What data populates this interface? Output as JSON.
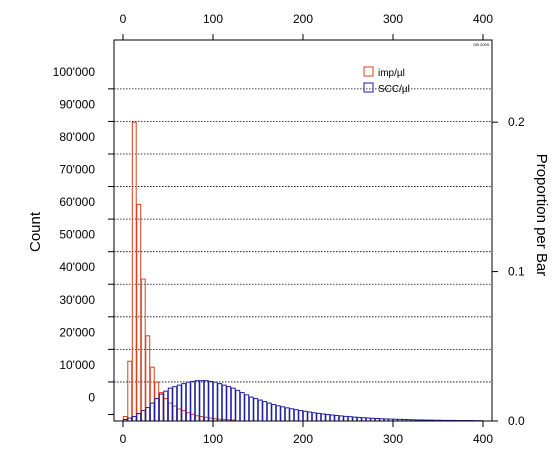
{
  "chart_data": {
    "type": "bar",
    "title": "",
    "xlabel": "",
    "ylabel_left": "Count",
    "ylabel_right": "Proportion per Bar",
    "xlim": [
      -10,
      410
    ],
    "ylim_left": [
      -2000,
      115000
    ],
    "ylim_right": [
      0,
      0.255
    ],
    "xticks": [
      0,
      100,
      200,
      300,
      400
    ],
    "xtick_labels": [
      "0",
      "100",
      "200",
      "300",
      "400"
    ],
    "yticks_left": [
      0,
      10000,
      20000,
      30000,
      40000,
      50000,
      60000,
      70000,
      80000,
      90000,
      100000
    ],
    "ytick_labels_left": [
      "0",
      "10'000",
      "20'000",
      "30'000",
      "40'000",
      "50'000",
      "60'000",
      "70'000",
      "80'000",
      "90'000",
      "100'000"
    ],
    "yticks_right": [
      0,
      0.1,
      0.2
    ],
    "ytick_labels_right": [
      "0.0",
      "0.1",
      "0.2"
    ],
    "grid_y": true,
    "legend_position": "top-right",
    "watermark": "GB 2009",
    "bin_width": 5,
    "series": [
      {
        "name": "imp/µl",
        "color": "#d9401e",
        "x": [
          0,
          5,
          10,
          15,
          20,
          25,
          30,
          35,
          40,
          45,
          50,
          55,
          60,
          65,
          70,
          75,
          80,
          85,
          90,
          95,
          100,
          105,
          110,
          115,
          120
        ],
        "values": [
          0.003,
          0.04,
          0.2,
          0.145,
          0.095,
          0.057,
          0.036,
          0.026,
          0.019,
          0.015,
          0.012,
          0.01,
          0.008,
          0.007,
          0.0055,
          0.0045,
          0.0035,
          0.003,
          0.0025,
          0.002,
          0.0015,
          0.0012,
          0.001,
          0.0008,
          0.0006
        ]
      },
      {
        "name": "SCC/µl",
        "color": "#1e1ea0",
        "x": [
          0,
          5,
          10,
          15,
          20,
          25,
          30,
          35,
          40,
          45,
          50,
          55,
          60,
          65,
          70,
          75,
          80,
          85,
          90,
          95,
          100,
          105,
          110,
          115,
          120,
          125,
          130,
          135,
          140,
          145,
          150,
          155,
          160,
          165,
          170,
          175,
          180,
          185,
          190,
          195,
          200,
          205,
          210,
          215,
          220,
          225,
          230,
          235,
          240,
          245,
          250,
          255,
          260,
          265,
          270,
          275,
          280,
          285,
          290,
          295,
          300,
          305,
          310,
          315,
          320,
          325,
          330,
          335,
          340,
          345,
          350,
          355,
          360,
          365,
          370,
          375,
          380,
          385,
          390,
          395
        ],
        "values": [
          0.001,
          0.002,
          0.003,
          0.005,
          0.007,
          0.009,
          0.012,
          0.015,
          0.018,
          0.02,
          0.022,
          0.023,
          0.024,
          0.025,
          0.026,
          0.0265,
          0.027,
          0.027,
          0.027,
          0.0265,
          0.026,
          0.025,
          0.024,
          0.023,
          0.022,
          0.0205,
          0.019,
          0.0175,
          0.016,
          0.015,
          0.014,
          0.013,
          0.012,
          0.011,
          0.0102,
          0.0095,
          0.0088,
          0.0082,
          0.0076,
          0.007,
          0.0065,
          0.006,
          0.0055,
          0.0051,
          0.0047,
          0.0043,
          0.004,
          0.0037,
          0.0034,
          0.0031,
          0.0029,
          0.0026,
          0.0024,
          0.0022,
          0.002,
          0.0018,
          0.0017,
          0.0015,
          0.0014,
          0.0013,
          0.0012,
          0.0011,
          0.001,
          0.0009,
          0.0008,
          0.0007,
          0.0007,
          0.0006,
          0.0006,
          0.0005,
          0.0005,
          0.0004,
          0.0004,
          0.0004,
          0.0003,
          0.0003,
          0.0003,
          0.0003,
          0.0002,
          0.0002
        ]
      }
    ]
  }
}
